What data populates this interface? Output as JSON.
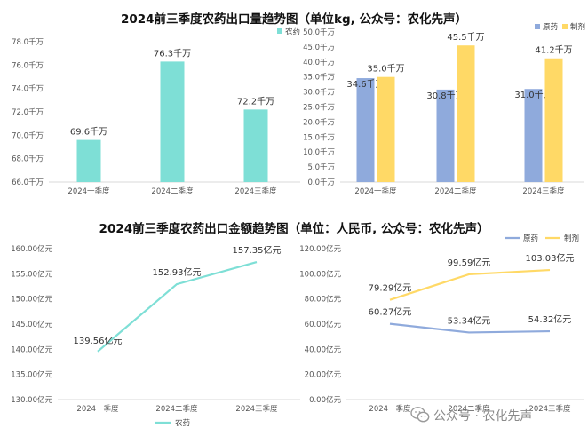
{
  "titles": {
    "top": "2024前三季度农药出口量趋势图（单位kg, 公众号：农化先声）",
    "bottom": "2024前三季度农药出口金额趋势图（单位：人民币, 公众号：农化先声）"
  },
  "watermark": "公众号 · 农化先声",
  "chart_data": [
    {
      "id": "volume-total",
      "type": "bar",
      "categories": [
        "2024一季度",
        "2024二季度",
        "2024三季度"
      ],
      "series": [
        {
          "name": "农药",
          "values": [
            69.6,
            76.3,
            72.2
          ],
          "color": "#7edfd6"
        }
      ],
      "value_suffix": "千万",
      "ylim": [
        66.0,
        78.0
      ],
      "yticks": [
        66.0,
        68.0,
        70.0,
        72.0,
        74.0,
        76.0,
        78.0
      ],
      "ytick_labels": [
        "66.0千万",
        "68.0千万",
        "70.0千万",
        "72.0千万",
        "74.0千万",
        "76.0千万",
        "78.0千万"
      ],
      "data_labels": [
        "69.6千万",
        "76.3千万",
        "72.2千万"
      ],
      "legend": "top-right"
    },
    {
      "id": "volume-split",
      "type": "bar",
      "categories": [
        "2024一季度",
        "2024二季度",
        "2024三季度"
      ],
      "series": [
        {
          "name": "原药",
          "values": [
            34.6,
            30.8,
            31.0
          ],
          "color": "#8faadc",
          "data_labels": [
            "34.6千万",
            "30.8千万",
            "31.0千万"
          ]
        },
        {
          "name": "制剂",
          "values": [
            35.0,
            45.5,
            41.2
          ],
          "color": "#ffd966",
          "data_labels": [
            "35.0千万",
            "45.5千万",
            "41.2千万"
          ]
        }
      ],
      "ylim": [
        0,
        50
      ],
      "yticks": [
        0,
        5,
        10,
        15,
        20,
        25,
        30,
        35,
        40,
        45,
        50
      ],
      "ytick_labels": [
        "0.0千万",
        "5.0千万",
        "10.0千万",
        "15.0千万",
        "20.0千万",
        "25.0千万",
        "30.0千万",
        "35.0千万",
        "40.0千万",
        "45.0千万",
        "50.0千万"
      ],
      "legend": "top-right"
    },
    {
      "id": "value-total",
      "type": "line",
      "categories": [
        "2024一季度",
        "2024二季度",
        "2024三季度"
      ],
      "series": [
        {
          "name": "农药",
          "values": [
            139.56,
            152.93,
            157.35
          ],
          "color": "#7edfd6"
        }
      ],
      "data_labels": [
        "139.56亿元",
        "152.93亿元",
        "157.35亿元"
      ],
      "ylim": [
        130,
        160
      ],
      "yticks": [
        130,
        135,
        140,
        145,
        150,
        155,
        160
      ],
      "ytick_labels": [
        "130.00亿元",
        "135.00亿元",
        "140.00亿元",
        "145.00亿元",
        "150.00亿元",
        "155.00亿元",
        "160.00亿元"
      ],
      "legend": "bottom"
    },
    {
      "id": "value-split",
      "type": "line",
      "categories": [
        "2024一季度",
        "2024二季度",
        "2024三季度"
      ],
      "series": [
        {
          "name": "原药",
          "values": [
            60.27,
            53.34,
            54.32
          ],
          "color": "#8faadc",
          "data_labels": [
            "60.27亿元",
            "53.34亿元",
            "54.32亿元"
          ]
        },
        {
          "name": "制剂",
          "values": [
            79.29,
            99.59,
            103.03
          ],
          "color": "#ffd966",
          "data_labels": [
            "79.29亿元",
            "99.59亿元",
            "103.03亿元"
          ]
        }
      ],
      "ylim": [
        0,
        120
      ],
      "yticks": [
        0,
        20,
        40,
        60,
        80,
        100,
        120
      ],
      "ytick_labels": [
        "0.00亿元",
        "20.00亿元",
        "40.00亿元",
        "60.00亿元",
        "80.00亿元",
        "100.00亿元",
        "120.00亿元"
      ],
      "legend": "top-right"
    }
  ]
}
